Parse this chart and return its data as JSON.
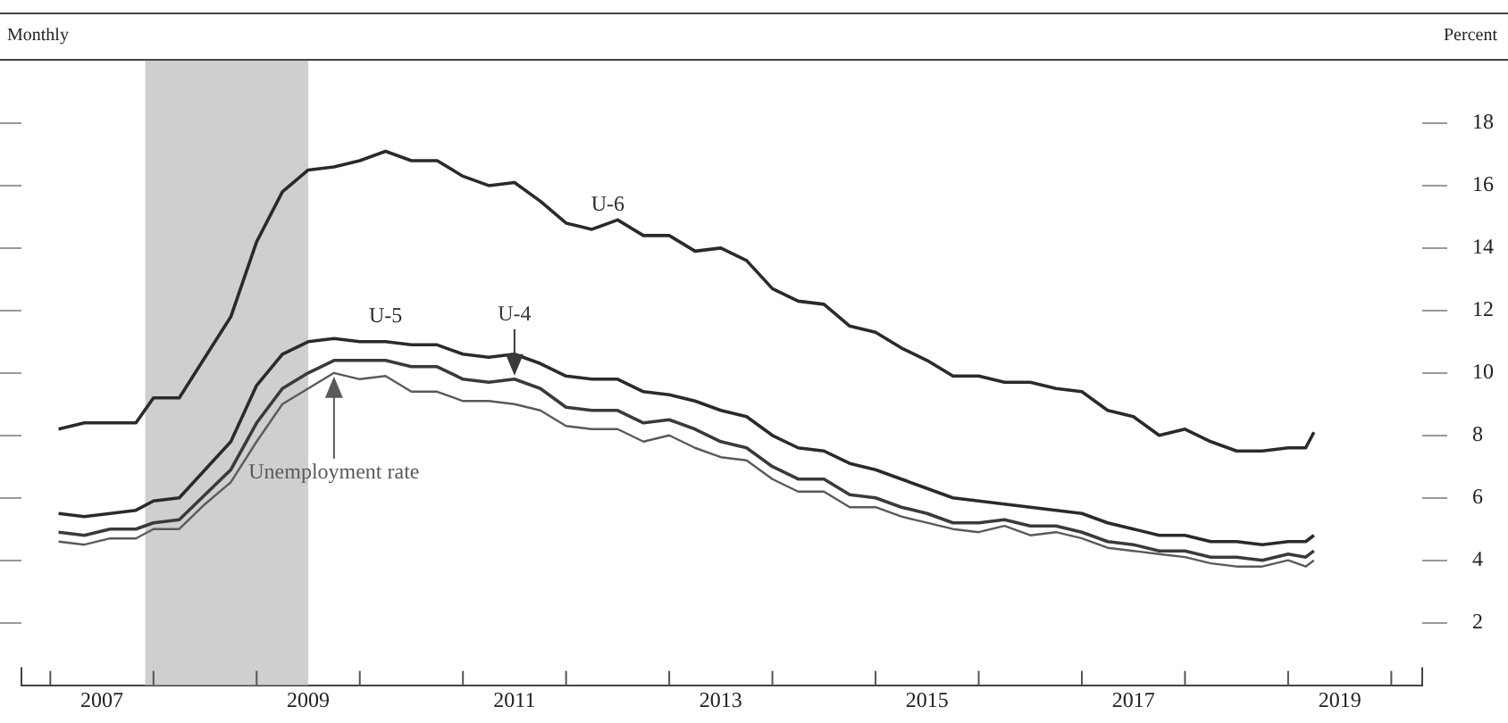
{
  "chart_data": {
    "type": "line",
    "ylabel": "Percent",
    "annotations": [
      "Monthly"
    ],
    "xlim": [
      2006.72,
      2020.3
    ],
    "ylim": [
      0,
      20
    ],
    "xticks": [
      {
        "value": 2007,
        "label": null
      },
      {
        "value": 2007.5,
        "label": "2007"
      },
      {
        "value": 2008,
        "label": null
      },
      {
        "value": 2009,
        "label": null
      },
      {
        "value": 2009.5,
        "label": "2009"
      },
      {
        "value": 2010,
        "label": null
      },
      {
        "value": 2011,
        "label": null
      },
      {
        "value": 2011.5,
        "label": "2011"
      },
      {
        "value": 2012,
        "label": null
      },
      {
        "value": 2013,
        "label": null
      },
      {
        "value": 2013.5,
        "label": "2013"
      },
      {
        "value": 2014,
        "label": null
      },
      {
        "value": 2015,
        "label": null
      },
      {
        "value": 2015.5,
        "label": "2015"
      },
      {
        "value": 2016,
        "label": null
      },
      {
        "value": 2017,
        "label": null
      },
      {
        "value": 2017.5,
        "label": "2017"
      },
      {
        "value": 2018,
        "label": null
      },
      {
        "value": 2019,
        "label": null
      },
      {
        "value": 2019.5,
        "label": "2019"
      },
      {
        "value": 2020,
        "label": null
      }
    ],
    "yticks": [
      2,
      4,
      6,
      8,
      10,
      12,
      14,
      16,
      18
    ],
    "grid": false,
    "legend": false,
    "bands": [
      {
        "axis": "x",
        "from": 2007.92,
        "to": 2009.5,
        "color": "#cfcfcf"
      }
    ],
    "x": [
      2007.08,
      2007.33,
      2007.58,
      2007.83,
      2008.0,
      2008.25,
      2008.5,
      2008.75,
      2009.0,
      2009.25,
      2009.5,
      2009.75,
      2010.0,
      2010.25,
      2010.5,
      2010.75,
      2011.0,
      2011.25,
      2011.5,
      2011.75,
      2012.0,
      2012.25,
      2012.5,
      2012.75,
      2013.0,
      2013.25,
      2013.5,
      2013.75,
      2014.0,
      2014.25,
      2014.5,
      2014.75,
      2015.0,
      2015.25,
      2015.5,
      2015.75,
      2016.0,
      2016.25,
      2016.5,
      2016.75,
      2017.0,
      2017.25,
      2017.5,
      2017.75,
      2018.0,
      2018.25,
      2018.5,
      2018.75,
      2019.0,
      2019.17,
      2019.25
    ],
    "series": [
      {
        "name": "U-6",
        "color": "#2a2a2a",
        "values": [
          8.2,
          8.4,
          8.4,
          8.4,
          9.2,
          9.2,
          10.5,
          11.8,
          14.2,
          15.8,
          16.5,
          16.6,
          16.8,
          17.1,
          16.8,
          16.8,
          16.3,
          16.0,
          16.1,
          15.5,
          14.8,
          14.6,
          14.9,
          14.4,
          14.4,
          13.9,
          14.0,
          13.6,
          12.7,
          12.3,
          12.2,
          11.5,
          11.3,
          10.8,
          10.4,
          9.9,
          9.9,
          9.7,
          9.7,
          9.5,
          9.4,
          8.8,
          8.6,
          8.0,
          8.2,
          7.8,
          7.5,
          7.5,
          7.6,
          7.6,
          8.1
        ]
      },
      {
        "name": "U-5",
        "color": "#2a2a2a",
        "values": [
          5.5,
          5.4,
          5.5,
          5.6,
          5.9,
          6.0,
          6.9,
          7.8,
          9.6,
          10.6,
          11.0,
          11.1,
          11.0,
          11.0,
          10.9,
          10.9,
          10.6,
          10.5,
          10.6,
          10.3,
          9.9,
          9.8,
          9.8,
          9.4,
          9.3,
          9.1,
          8.8,
          8.6,
          8.0,
          7.6,
          7.5,
          7.1,
          6.9,
          6.6,
          6.3,
          6.0,
          5.9,
          5.8,
          5.7,
          5.6,
          5.5,
          5.2,
          5.0,
          4.8,
          4.8,
          4.6,
          4.6,
          4.5,
          4.6,
          4.6,
          4.8
        ]
      },
      {
        "name": "U-4",
        "color": "#3a3a3a",
        "values": [
          4.9,
          4.8,
          5.0,
          5.0,
          5.2,
          5.3,
          6.1,
          6.9,
          8.4,
          9.5,
          10.0,
          10.4,
          10.4,
          10.4,
          10.2,
          10.2,
          9.8,
          9.7,
          9.8,
          9.5,
          8.9,
          8.8,
          8.8,
          8.4,
          8.5,
          8.2,
          7.8,
          7.6,
          7.0,
          6.6,
          6.6,
          6.1,
          6.0,
          5.7,
          5.5,
          5.2,
          5.2,
          5.3,
          5.1,
          5.1,
          4.9,
          4.6,
          4.5,
          4.3,
          4.3,
          4.1,
          4.1,
          4.0,
          4.2,
          4.1,
          4.3
        ]
      },
      {
        "name": "Unemployment rate",
        "color": "#5a5a5a",
        "values": [
          4.6,
          4.5,
          4.7,
          4.7,
          5.0,
          5.0,
          5.8,
          6.5,
          7.8,
          9.0,
          9.5,
          10.0,
          9.8,
          9.9,
          9.4,
          9.4,
          9.1,
          9.1,
          9.0,
          8.8,
          8.3,
          8.2,
          8.2,
          7.8,
          8.0,
          7.6,
          7.3,
          7.2,
          6.6,
          6.2,
          6.2,
          5.7,
          5.7,
          5.4,
          5.2,
          5.0,
          4.9,
          5.1,
          4.8,
          4.9,
          4.7,
          4.4,
          4.3,
          4.2,
          4.1,
          3.9,
          3.8,
          3.8,
          4.0,
          3.8,
          4.0
        ]
      }
    ]
  }
}
